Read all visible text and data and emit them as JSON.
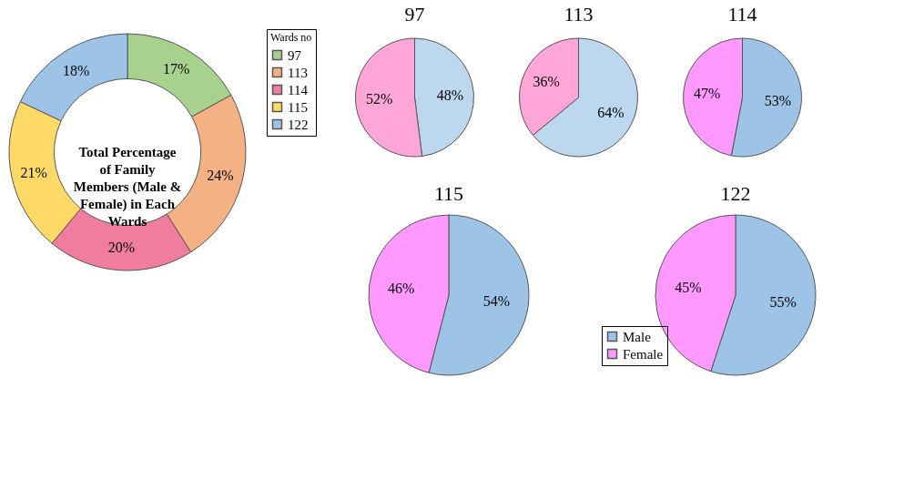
{
  "chart_data": [
    {
      "type": "donut",
      "title": "Total Percentage\nof Family\nMembers (Male &\nFemale) in Each\nWards",
      "legend_title": "Wards no",
      "legend": "right",
      "categories": [
        "97",
        "113",
        "114",
        "115",
        "122"
      ],
      "values": [
        17,
        24,
        20,
        21,
        18
      ],
      "value_labels": [
        "17%",
        "24%",
        "20%",
        "21%",
        "18%"
      ],
      "colors": [
        "#a9d18e",
        "#f4b183",
        "#f07ca0",
        "#ffd966",
        "#9dc3e6"
      ]
    },
    {
      "type": "pie",
      "title": "97",
      "categories": [
        null,
        null
      ],
      "values": [
        48,
        52
      ],
      "value_labels": [
        "48%",
        "52%"
      ],
      "colors": [
        "#bdd7ee",
        "#ffa6d9"
      ]
    },
    {
      "type": "pie",
      "title": "113",
      "categories": [
        null,
        null
      ],
      "values": [
        64,
        36
      ],
      "value_labels": [
        "64%",
        "36%"
      ],
      "colors": [
        "#bdd7ee",
        "#ffa6d9"
      ]
    },
    {
      "type": "pie",
      "title": "114",
      "categories": [
        null,
        null
      ],
      "values": [
        53,
        47
      ],
      "value_labels": [
        "53%",
        "47%"
      ],
      "colors": [
        "#9dc3e6",
        "#ff99ff"
      ]
    },
    {
      "type": "pie",
      "title": "115",
      "categories": [
        null,
        null
      ],
      "values": [
        54,
        46
      ],
      "value_labels": [
        "54%",
        "46%"
      ],
      "colors": [
        "#9dc3e6",
        "#ff99ff"
      ]
    },
    {
      "type": "pie",
      "title": "122",
      "legend": "bottom left",
      "categories": [
        "Male",
        "Female"
      ],
      "values": [
        55,
        45
      ],
      "value_labels": [
        "55%",
        "45%"
      ],
      "colors": [
        "#9dc3e6",
        "#ff99ff"
      ]
    }
  ]
}
